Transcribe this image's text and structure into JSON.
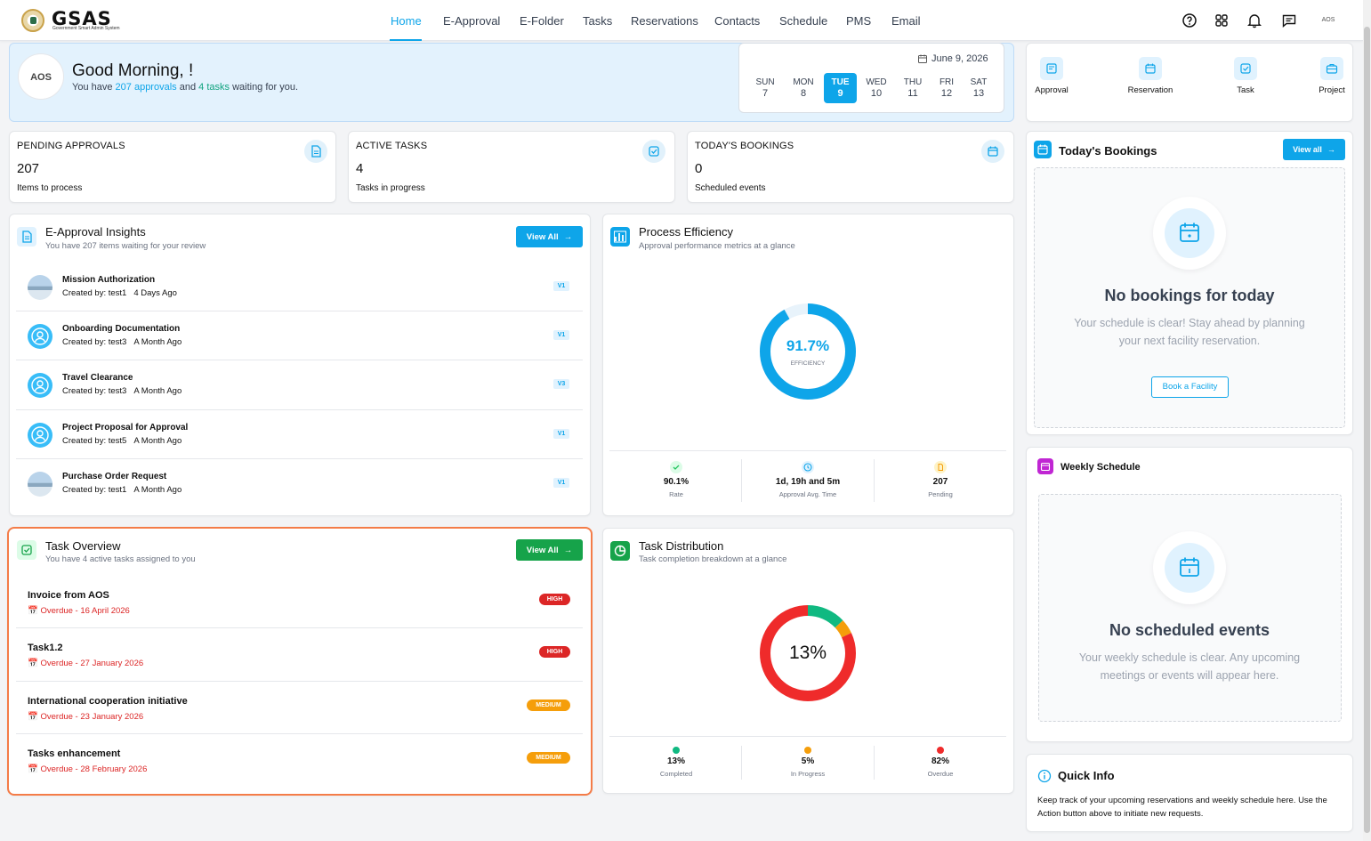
{
  "brand": {
    "name": "GSAS",
    "subtitle": "Government Smart Admin System"
  },
  "nav": [
    {
      "label": "Home",
      "active": true
    },
    {
      "label": "E-Approval"
    },
    {
      "label": "E-Folder"
    },
    {
      "label": "Tasks"
    },
    {
      "label": "Reservations"
    },
    {
      "label": "Contacts"
    },
    {
      "label": "Schedule"
    },
    {
      "label": "PMS"
    },
    {
      "label": "Email"
    }
  ],
  "top_icons": [
    "help-icon",
    "apps-grid-icon",
    "bell-icon",
    "chat-icon"
  ],
  "user_avatar_text": "AOS",
  "greeting": {
    "avatar_text": "AOS",
    "title": "Good Morning, !",
    "sub_prefix": "You have",
    "approvals_link": "207 approvals",
    "sub_and": "and",
    "tasks_link": "4 tasks",
    "sub_suffix": "waiting for you."
  },
  "calendar": {
    "date": "June 9, 2026",
    "days": [
      {
        "name": "SUN",
        "num": "7"
      },
      {
        "name": "MON",
        "num": "8"
      },
      {
        "name": "TUE",
        "num": "9",
        "today": true
      },
      {
        "name": "WED",
        "num": "10"
      },
      {
        "name": "THU",
        "num": "11"
      },
      {
        "name": "FRI",
        "num": "12"
      },
      {
        "name": "SAT",
        "num": "13"
      }
    ]
  },
  "stats": [
    {
      "title": "PENDING APPROVALS",
      "value": "207",
      "sub": "Items to process",
      "icon": "document-icon"
    },
    {
      "title": "ACTIVE TASKS",
      "value": "4",
      "sub": "Tasks in progress",
      "icon": "checkbox-icon"
    },
    {
      "title": "TODAY'S BOOKINGS",
      "value": "0",
      "sub": "Scheduled events",
      "icon": "calendar-icon"
    }
  ],
  "approvals": {
    "title": "E-Approval Insights",
    "subtitle": "You have 207 items waiting for your review",
    "view_all": "View All",
    "items": [
      {
        "name": "Mission Authorization",
        "by": "Created by: test1",
        "when": "4 Days Ago",
        "version": "V1",
        "avatar": "photo"
      },
      {
        "name": "Onboarding Documentation",
        "by": "Created by: test3",
        "when": "A Month Ago",
        "version": "V1",
        "avatar": "user"
      },
      {
        "name": "Travel Clearance",
        "by": "Created by: test3",
        "when": "A Month Ago",
        "version": "V3",
        "avatar": "user"
      },
      {
        "name": "Project Proposal for Approval",
        "by": "Created by: test5",
        "when": "A Month Ago",
        "version": "V1",
        "avatar": "user"
      },
      {
        "name": "Purchase Order Request",
        "by": "Created by: test1",
        "when": "A Month Ago",
        "version": "V1",
        "avatar": "photo"
      }
    ]
  },
  "efficiency": {
    "title": "Process Efficiency",
    "subtitle": "Approval performance metrics at a glance",
    "value": "91.7%",
    "value_num": 91.7,
    "label": "EFFICIENCY",
    "metrics": [
      {
        "value": "90.1%",
        "label": "Rate",
        "color": "#22c55e"
      },
      {
        "value": "1d, 19h and 5m",
        "label": "Approval Avg. Time",
        "color": "#0ea5e9"
      },
      {
        "value": "207",
        "label": "Pending",
        "color": "#f59e0b"
      }
    ]
  },
  "tasks": {
    "title": "Task Overview",
    "subtitle": "You have 4 active tasks assigned to you",
    "view_all": "View All",
    "items": [
      {
        "name": "Invoice from AOS",
        "due": "Overdue - 16 April 2026",
        "priority": "HIGH"
      },
      {
        "name": "Task1.2",
        "due": "Overdue - 27 January 2026",
        "priority": "HIGH"
      },
      {
        "name": "International cooperation initiative",
        "due": "Overdue - 23 January 2026",
        "priority": "MEDIUM"
      },
      {
        "name": "Tasks enhancement",
        "due": "Overdue - 28 February 2026",
        "priority": "MEDIUM"
      }
    ]
  },
  "distribution": {
    "title": "Task Distribution",
    "subtitle": "Task completion breakdown at a glance",
    "center": "13%",
    "metrics": [
      {
        "value": "13%",
        "label": "Completed",
        "color": "#10b981",
        "pct": 13
      },
      {
        "value": "5%",
        "label": "In Progress",
        "color": "#f59e0b",
        "pct": 5
      },
      {
        "value": "82%",
        "label": "Overdue",
        "color": "#ef2b2b",
        "pct": 82
      }
    ]
  },
  "quick_actions": [
    {
      "label": "Approval",
      "icon": "approval-icon"
    },
    {
      "label": "Reservation",
      "icon": "reservation-icon"
    },
    {
      "label": "Task",
      "icon": "task-icon"
    },
    {
      "label": "Project",
      "icon": "briefcase-icon"
    }
  ],
  "bookings": {
    "title": "Today's Bookings",
    "view_all": "View all",
    "empty_title": "No bookings for today",
    "empty_text": "Your schedule is clear! Stay ahead by planning your next facility reservation.",
    "button": "Book a Facility"
  },
  "weekly": {
    "title": "Weekly Schedule",
    "empty_title": "No scheduled events",
    "empty_text": "Your weekly schedule is clear. Any upcoming meetings or events will appear here."
  },
  "quick_info": {
    "title": "Quick Info",
    "text": "Keep track of your upcoming reservations and weekly schedule here. Use the Action button above to initiate new requests."
  },
  "colors": {
    "accent": "#0ea5e9",
    "green": "#16a34a",
    "danger": "#dc2626",
    "warning": "#f59e0b"
  }
}
